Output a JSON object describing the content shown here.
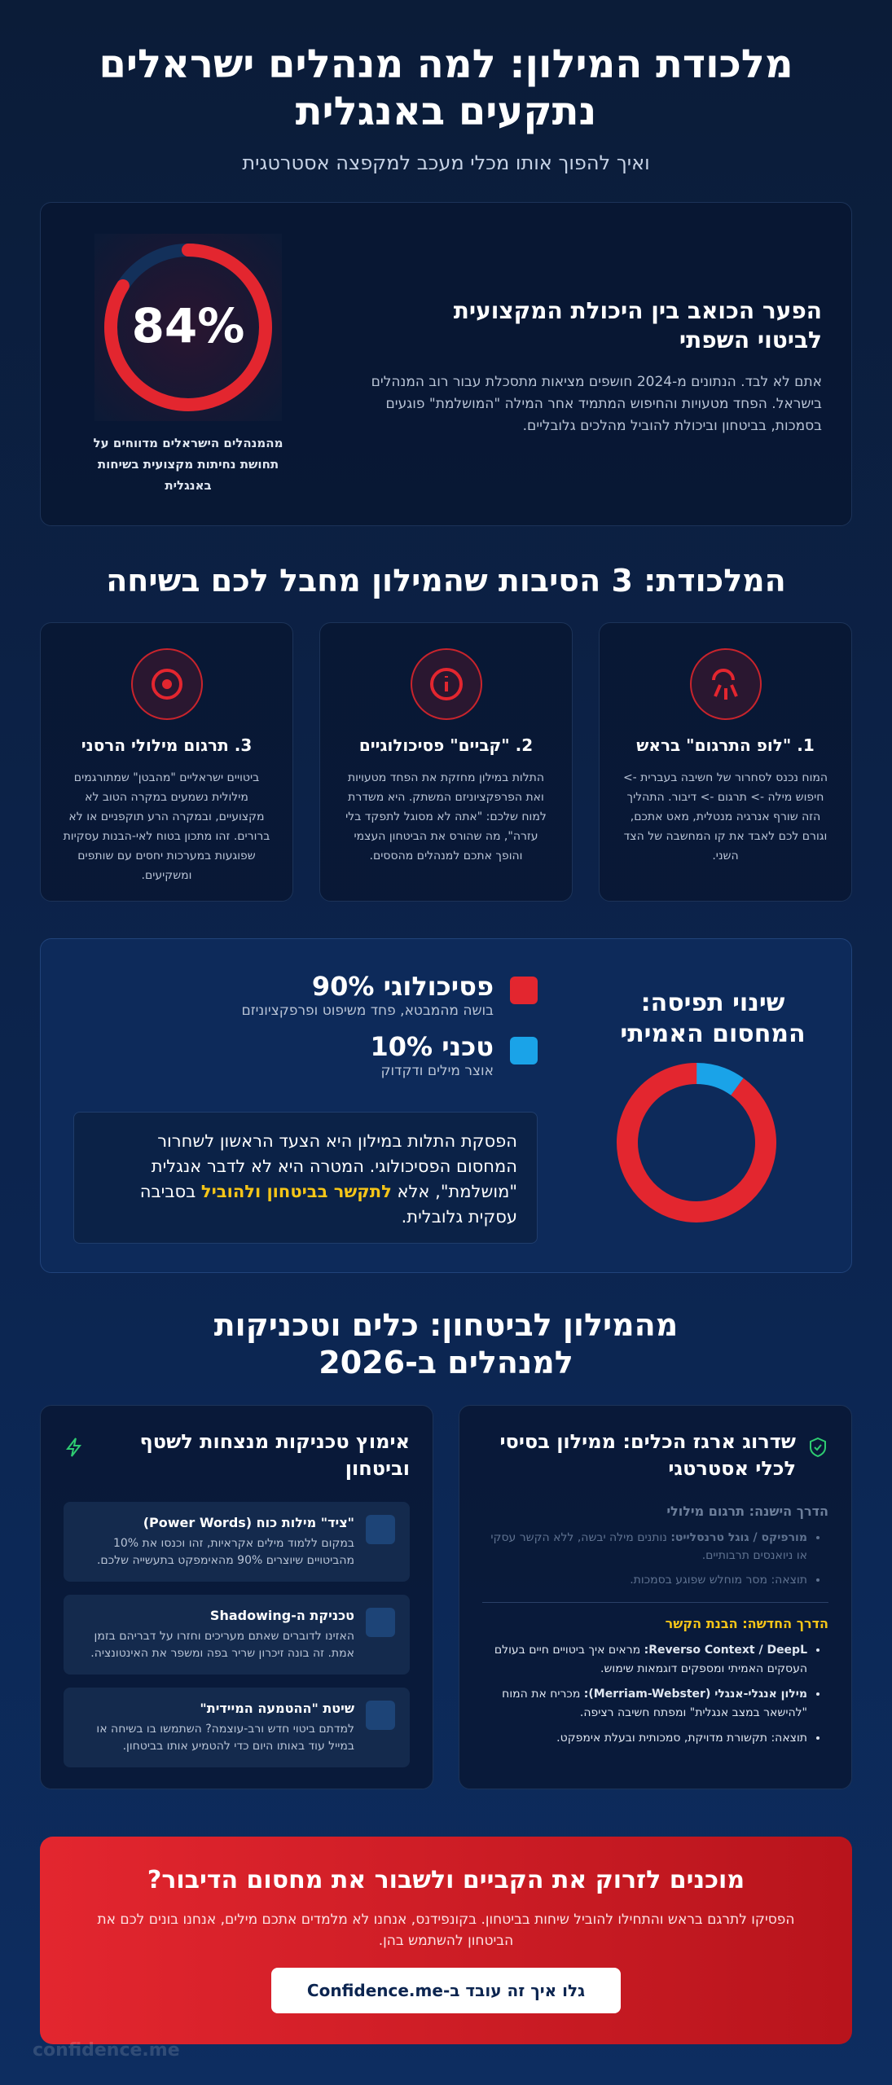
{
  "header": {
    "title": "מלכודת המילון: למה מנהלים ישראלים נתקעים באנגלית",
    "subtitle": "ואיך להפוך אותו מכלי מעכב למקפצה אסטרטגית"
  },
  "intro": {
    "stat": {
      "value": 84,
      "label": "84%",
      "color": "#e3262f"
    },
    "stat_caption": "מהמנהלים הישראלים מדווחים על תחושת נחיתות מקצועית בשיחות באנגלית",
    "heading": "הפער הכואב בין היכולת המקצועית לביטוי השפתי",
    "text": "אתם לא לבד. הנתונים מ-2024 חושפים מציאות מתסכלת עבור רוב המנהלים בישראל. הפחד מטעויות והחיפוש המתמיד אחר המילה \"המושלמת\" פוגעים בסמכות, בביטחון וביכולת להוביל מהלכים גלובליים."
  },
  "traps": {
    "title": "המלכודת: 3 הסיבות שהמילון מחבל לכם בשיחה",
    "cards": [
      {
        "title": "1. \"לופ התרגום\" בראש",
        "text": "המוח נכנס לסחרור של חשיבה בעברית -> חיפוש מילה -> תרגום -> דיבור. התהליך הזה שורף אנרגיה מנטלית, מאט אתכם, וגורם לכם לאבד את קו המחשבה של הצד השני."
      },
      {
        "title": "2. \"קביים\" פסיכולוגיים",
        "text": "התלות במילון מחזקת את הפחד מטעויות ואת הפרפקציוניזם המשתק. היא משדרת למוח שלכם: \"אתה לא מסוגל לתפקד בלי עזרה\", מה שהורס את הביטחון העצמי והופך אתכם למנהלים מהססים."
      },
      {
        "title": "3. תרגום מילולי הרסני",
        "text": "ביטויים ישראליים \"מהבטן\" שמתורגמים מילולית נשמעים במקרה הטוב לא מקצועיים, ובמקרה הרע תוקפניים או לא ברורים. זהו מתכון בטוח לאי-הבנות עסקיות שפוגעות במערכות יחסים עם שותפים ומשקיעים."
      }
    ]
  },
  "mindset": {
    "title": "שינוי תפיסה: המחסום האמיתי",
    "segments": [
      {
        "value": 90,
        "label": "90%",
        "name": "פסיכולוגי",
        "desc": "בושה מהמבטא, פחד משיפוט ופרפקציוניזם",
        "color": "#e3262f"
      },
      {
        "value": 10,
        "label": "10%",
        "name": "טכני",
        "desc": "אוצר מילים ודקדוק",
        "color": "#1aa3e8"
      }
    ],
    "note": [
      "הפסקת התלות במילון היא הצעד הראשון לשחרור המחסום הפסיכולוגי. המטרה היא לא לדבר אנגלית \"מושלמת\", אלא ",
      "לתקשר בביטחון ולהוביל",
      " בסביבה עסקית גלובלית."
    ]
  },
  "tools": {
    "title": "מהמילון לביטחון: כלים וטכניקות למנהלים ב-2026",
    "toolbox": {
      "title": "שדרוג ארגז הכלים: ממילון בסיסי לכלי אסטרטגי",
      "old": {
        "heading": "הדרך הישנה: תרגום מילולי",
        "items": [
          {
            "bold": "מורפיקס / גוגל טרנסלייט:",
            "text": " נותנים מילה יבשה, ללא הקשר עסקי או ניואנסים תרבותיים."
          },
          {
            "text": "תוצאה: מסר מוחלש שפוגע בסמכות."
          }
        ]
      },
      "new": {
        "heading": "הדרך החדשה: הבנת הקשר",
        "items": [
          {
            "bold": "Reverso Context / DeepL:",
            "text": " מראים איך ביטויים חיים בעולם העסקים האמיתי ומספקים דוגמאות שימוש."
          },
          {
            "bold": "מילון אנגלי-אנגלי (Merriam-Webster):",
            "text": " מכריח את המוח \"להישאר במצב אנגלית\" ומפתח חשיבה רציפה."
          },
          {
            "text": "תוצאה: תקשורת מדויקת, סמכותית ובעלת אימפקט."
          }
        ]
      }
    },
    "techniques": {
      "title": "אימוץ טכניקות מנצחות לשטף וביטחון",
      "items": [
        {
          "title": "\"ציד\" מילות כוח (Power Words)",
          "text": "במקום ללמוד מילים אקראיות, זהו וכנסו את 10% מהביטויים שיוצרים 90% מהאימפקט בתעשייה שלכם."
        },
        {
          "title": "טכניקת ה-Shadowing",
          "text": "האזינו לדוברים שאתם מעריכים וחזרו על דבריהם בזמן אמת. זה בונה זיכרון שריר בפה ומשפר את האינטונציה."
        },
        {
          "title": "שיטת \"ההטמעה המיידית\"",
          "text": "למדתם ביטוי חדש ורב-עוצמה? השתמשו בו בשיחה או במייל עוד באותו היום כדי להטמיע אותו בביטחון."
        }
      ]
    }
  },
  "cta": {
    "title": "מוכנים לזרוק את הקביים ולשבור את מחסום הדיבור?",
    "text": "הפסיקו לתרגם בראש והתחילו להוביל שיחות בביטחון. בקונפידנס, אנחנו לא מלמדים אתכם מילים, אנחנו בונים לכם את הביטחון להשתמש בהן.",
    "button": "גלו איך זה עובד ב-Confidence.me"
  },
  "footer": {
    "watermark": "confidence.me"
  }
}
